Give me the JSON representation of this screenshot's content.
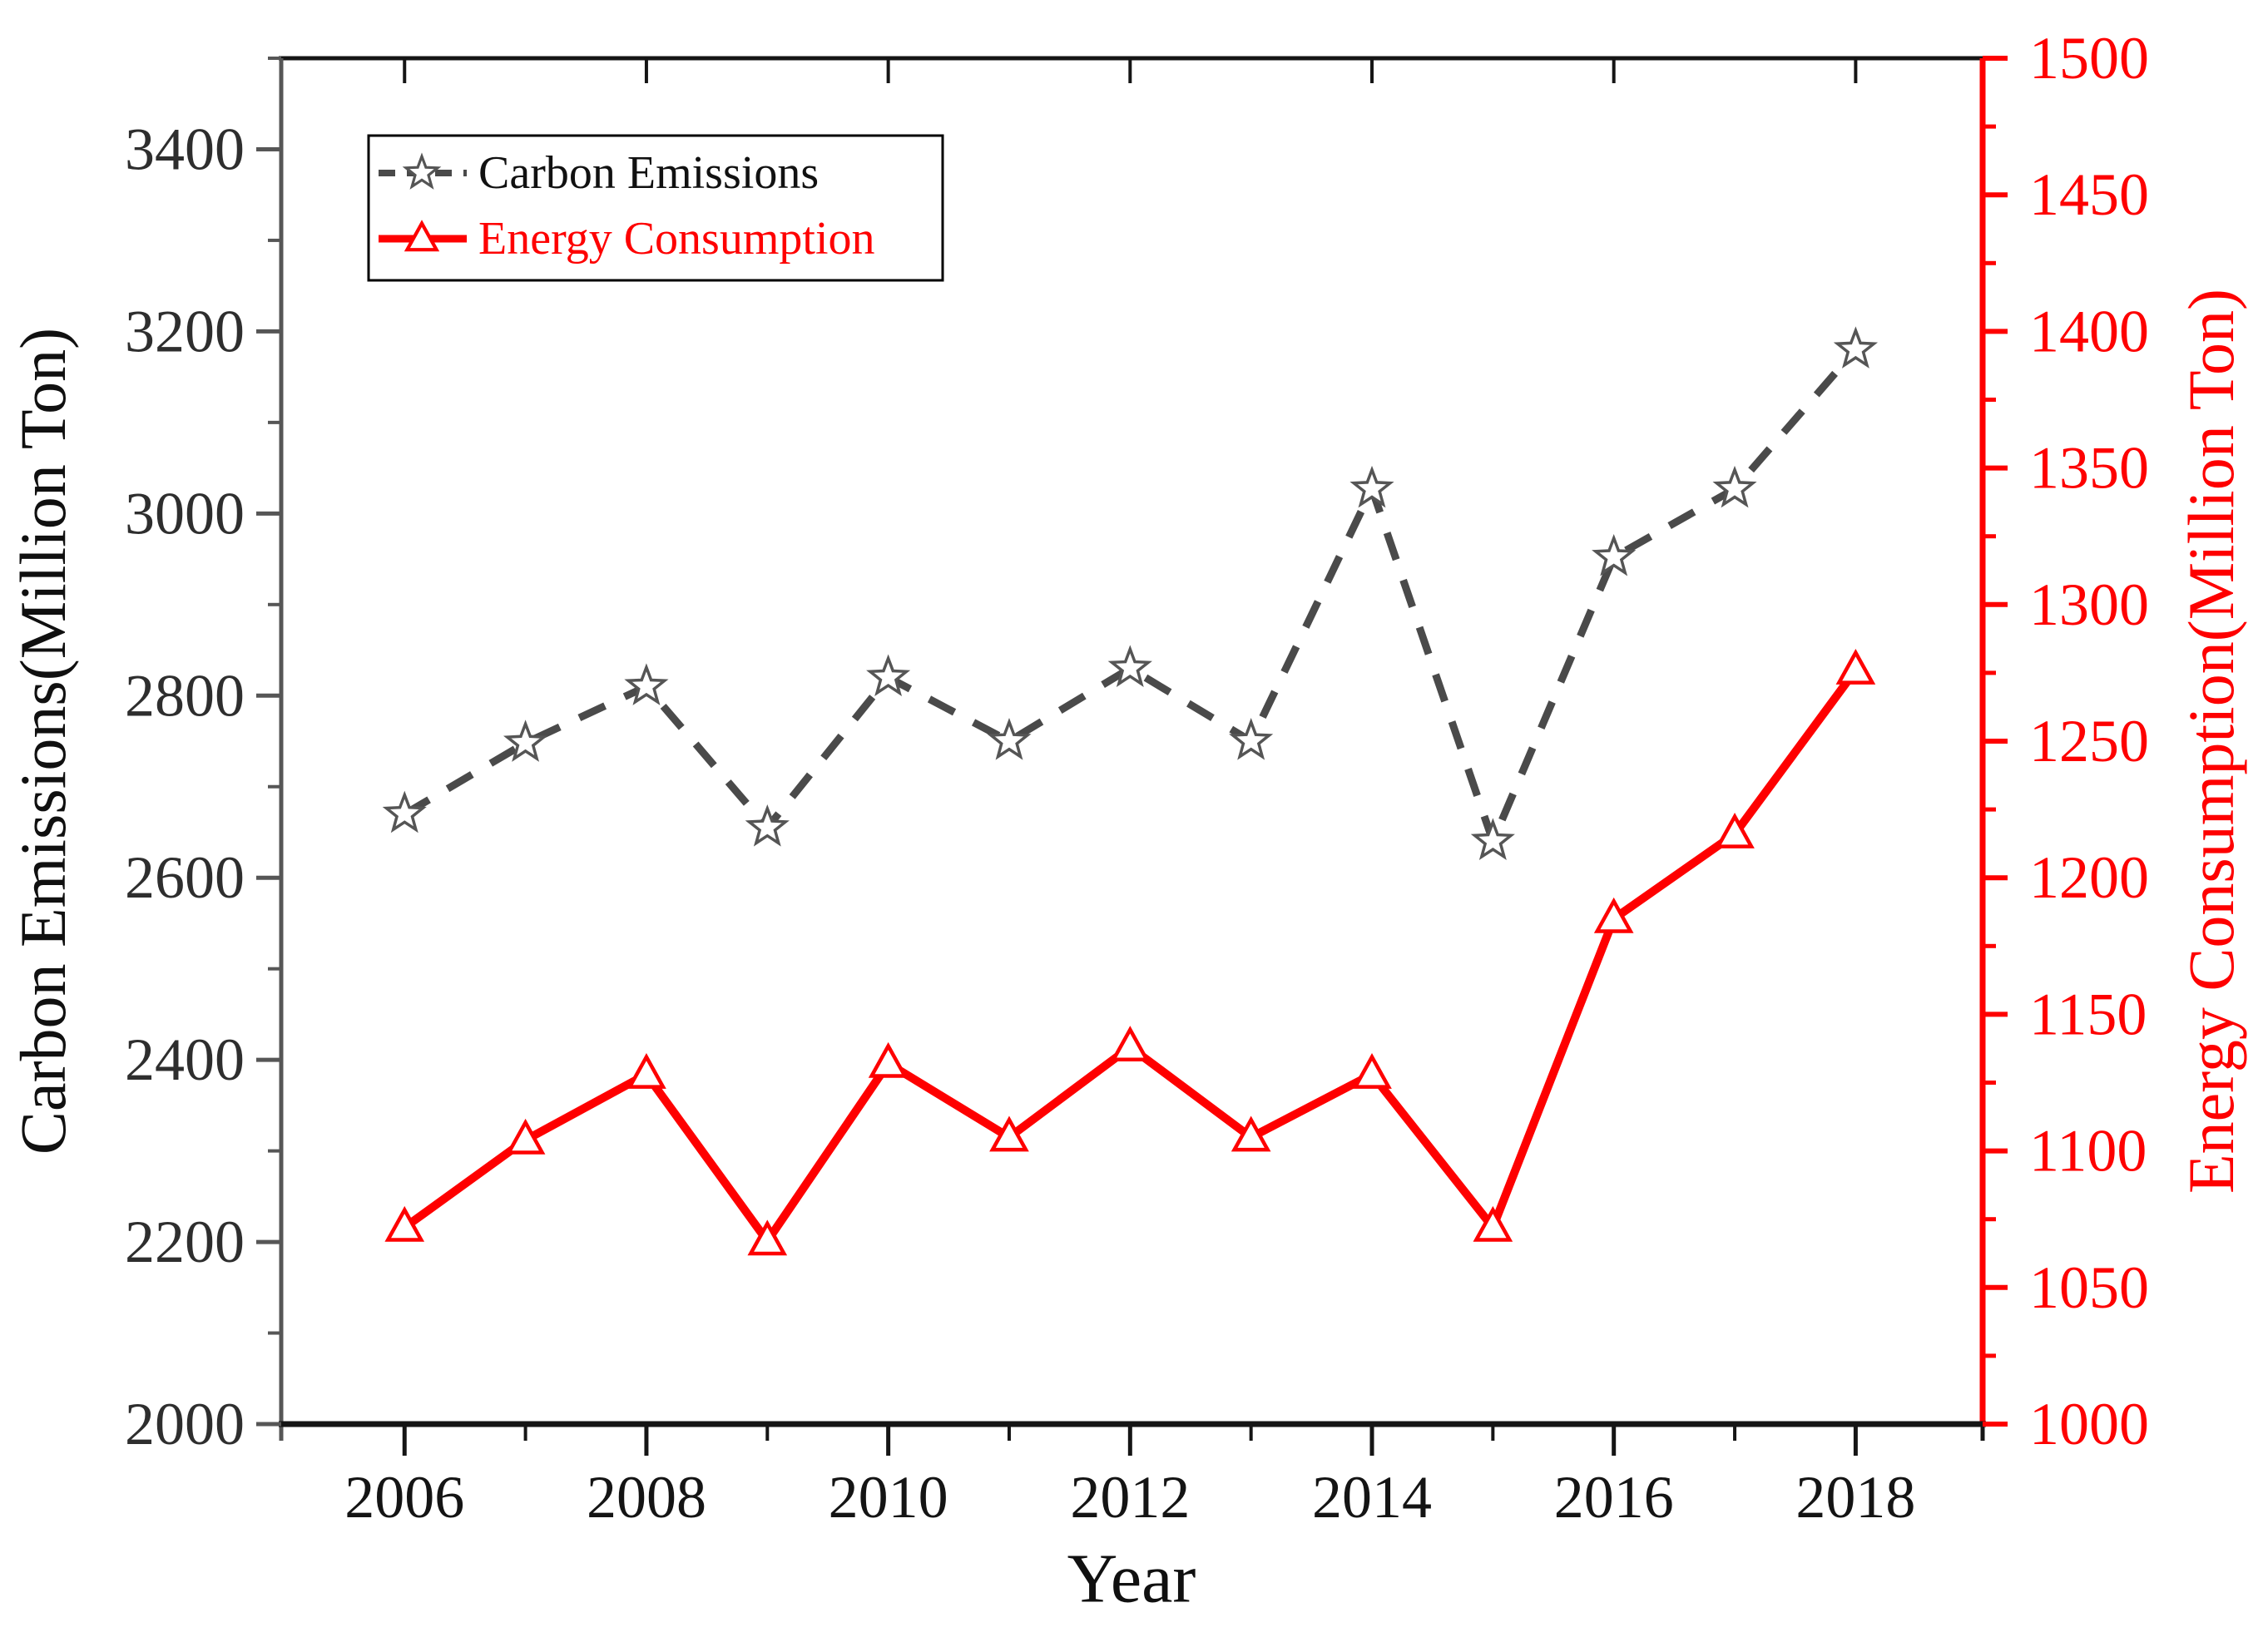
{
  "chart_data": {
    "type": "line",
    "title": "",
    "x": [
      2006,
      2007,
      2008,
      2009,
      2010,
      2011,
      2012,
      2013,
      2014,
      2015,
      2016,
      2017,
      2018
    ],
    "series": [
      {
        "name": "Carbon Emissions",
        "axis": "left",
        "color": "#4a4a4a",
        "text_color": "#111111",
        "line_style": "dashed",
        "marker": "star",
        "values": [
          2670,
          2748,
          2810,
          2655,
          2820,
          2750,
          2830,
          2750,
          3027,
          2640,
          2952,
          3027,
          3180
        ]
      },
      {
        "name": "Energy Consumption",
        "axis": "right",
        "color": "#fe0000",
        "text_color": "#fe0000",
        "line_style": "solid",
        "marker": "triangle",
        "values": [
          1072,
          1104,
          1128,
          1067,
          1132,
          1105,
          1138,
          1105,
          1128,
          1072,
          1185,
          1216,
          1276
        ]
      }
    ],
    "x_axis": {
      "label": "Year",
      "min": 2004.98,
      "max": 2019.05,
      "major_ticks": [
        2006,
        2008,
        2010,
        2012,
        2014,
        2016,
        2018
      ],
      "minor_ticks": [
        2007,
        2009,
        2011,
        2013,
        2015,
        2017
      ],
      "tick_color": "#151515",
      "label_color": "#141414"
    },
    "left_axis": {
      "label": "Carbon Emissions(Million Ton)",
      "min": 2000,
      "max": 3500,
      "major_step": 200,
      "minor_step": 100,
      "tick_labels": [
        2000,
        2200,
        2400,
        2600,
        2800,
        3000,
        3200,
        3400
      ],
      "axis_color": "#565656",
      "label_color": "#2e2e2e"
    },
    "right_axis": {
      "label": "Energy Consumption(Million Ton)",
      "min": 1000,
      "max": 1500,
      "major_step": 50,
      "minor_step": 25,
      "tick_labels": [
        1000,
        1050,
        1100,
        1150,
        1200,
        1250,
        1300,
        1350,
        1400,
        1450,
        1500
      ],
      "axis_color": "#fe0000",
      "label_color": "#fe0000"
    },
    "legend": {
      "position": "top-left",
      "entries": [
        "Carbon Emissions",
        "Energy Consumption"
      ]
    },
    "grid": false
  }
}
